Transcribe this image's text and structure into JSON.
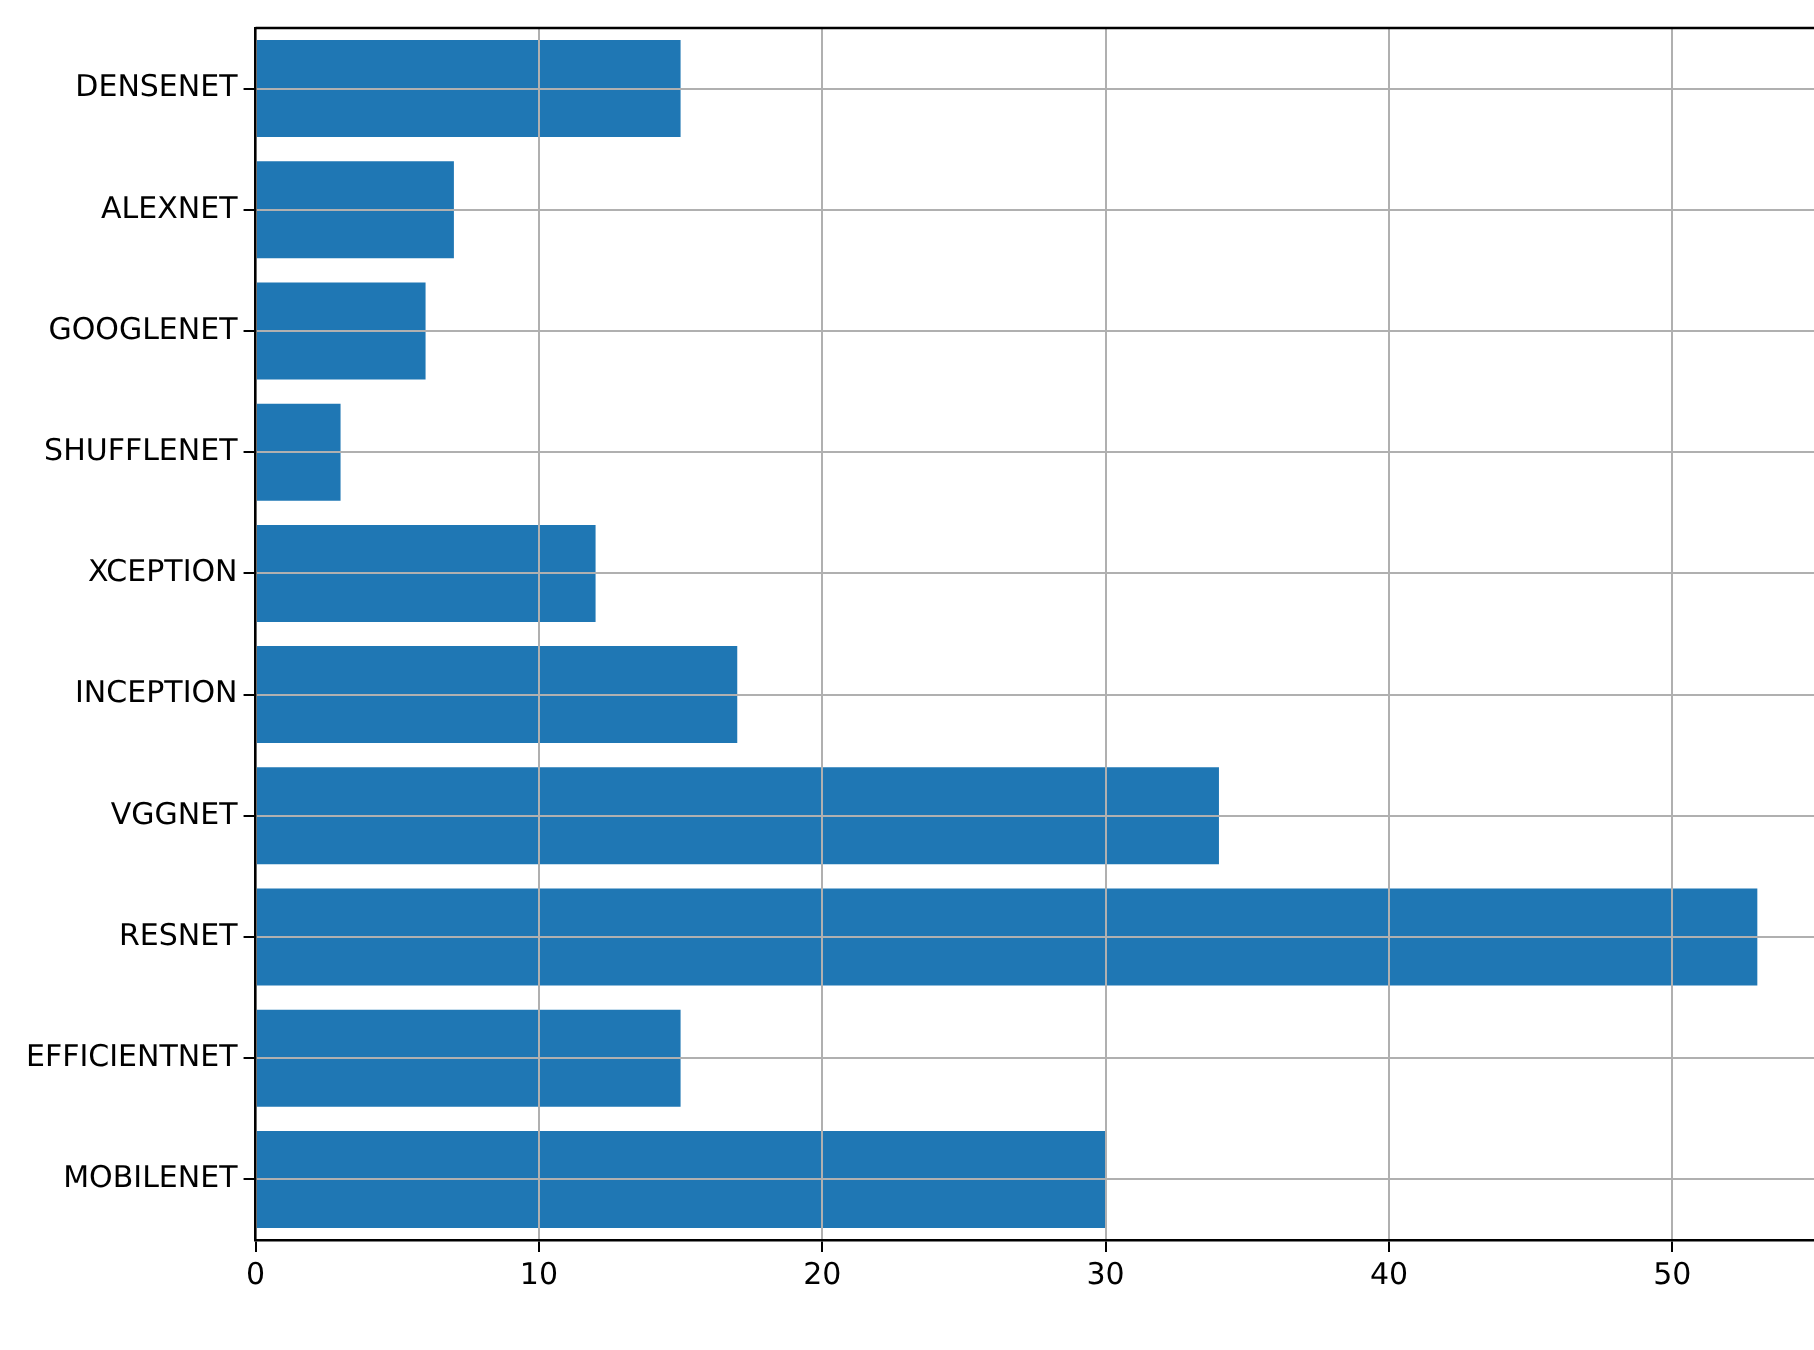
{
  "chart_data": {
    "type": "bar",
    "orientation": "horizontal",
    "categories": [
      "DENSENET",
      "ALEXNET",
      "GOOGLENET",
      "SHUFFLENET",
      "XCEPTION",
      "INCEPTION",
      "VGGNET",
      "RESNET",
      "EFFICIENTNET",
      "MOBILENET"
    ],
    "values": [
      15,
      7,
      6,
      3,
      12,
      17,
      34,
      53,
      15,
      30
    ],
    "color": "#1f77b4",
    "xlim": [
      0,
      55
    ],
    "xticks": [
      0,
      10,
      20,
      30,
      40,
      50
    ],
    "grid": true
  }
}
